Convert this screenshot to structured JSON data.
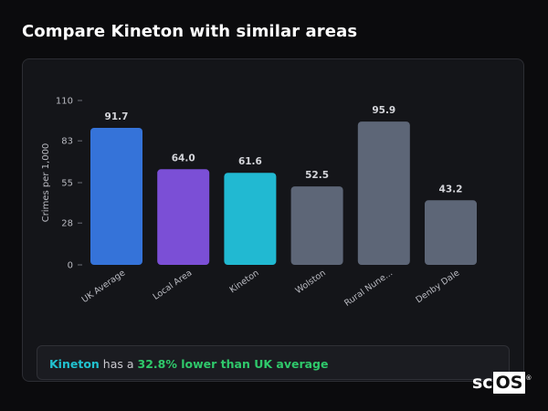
{
  "page": {
    "title": "Compare Kineton with similar areas"
  },
  "chart_data": {
    "type": "bar",
    "ylabel": "Crimes per 1,000",
    "ylim": [
      0,
      110
    ],
    "yticks": [
      0,
      28,
      55,
      83,
      110
    ],
    "categories": [
      "UK Average",
      "Local Area",
      "Kineton",
      "Wolston",
      "Rural Nune...",
      "Denby Dale"
    ],
    "values": [
      91.7,
      64.0,
      61.6,
      52.5,
      95.9,
      43.2
    ],
    "value_labels": [
      "91.7",
      "64.0",
      "61.6",
      "52.5",
      "95.9",
      "43.2"
    ],
    "colors": [
      "#3573d9",
      "#7b4fd6",
      "#21b9d2",
      "#5d6677",
      "#5d6677",
      "#5d6677"
    ]
  },
  "summary": {
    "area": "Kineton",
    "middle": " has a ",
    "difference": "32.8% lower than UK average"
  },
  "logo": {
    "text_sc": "sc",
    "text_os": "OS",
    "mark": "®"
  }
}
